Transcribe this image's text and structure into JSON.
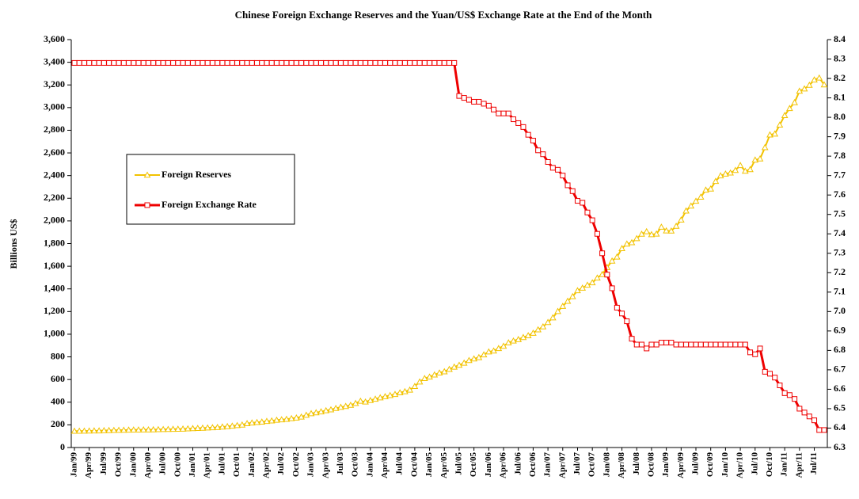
{
  "chart_data": {
    "type": "line",
    "title": "Chinese Foreign Exchange Reserves and the Yuan/US$ Exchange Rate at the End of the Month",
    "y_label": "Billions US$",
    "legend_position": "upper left",
    "categories": [
      "Jan/99",
      null,
      null,
      "Apr/99",
      null,
      null,
      "Jul/99",
      null,
      null,
      "Oct/99",
      null,
      null,
      "Jan/00",
      null,
      null,
      "Apr/00",
      null,
      null,
      "Jul/00",
      null,
      null,
      "Oct/00",
      null,
      null,
      "Jan/01",
      null,
      null,
      "Apr/01",
      null,
      null,
      "Jul/01",
      null,
      null,
      "Oct/01",
      null,
      null,
      "Jan/02",
      null,
      null,
      "Apr/02",
      null,
      null,
      "Jul/02",
      null,
      null,
      "Oct/02",
      null,
      null,
      "Jan/03",
      null,
      null,
      "Apr/03",
      null,
      null,
      "Jul/03",
      null,
      null,
      "Oct/03",
      null,
      null,
      "Jan/04",
      null,
      null,
      "Apr/04",
      null,
      null,
      "Jul/04",
      null,
      null,
      "Oct/04",
      null,
      null,
      "Jan/05",
      null,
      null,
      "Apr/05",
      null,
      null,
      "Jul/05",
      null,
      null,
      "Oct/05",
      null,
      null,
      "Jan/06",
      null,
      null,
      "Apr/06",
      null,
      null,
      "Jul/06",
      null,
      null,
      "Oct/06",
      null,
      null,
      "Jan/07",
      null,
      null,
      "Apr/07",
      null,
      null,
      "Jul/07",
      null,
      null,
      "Oct/07",
      null,
      null,
      "Jan/08",
      null,
      null,
      "Apr/08",
      null,
      null,
      "Jul/08",
      null,
      null,
      "Oct/08",
      null,
      null,
      "Jan/09",
      null,
      null,
      "Apr/09",
      null,
      null,
      "Jul/09",
      null,
      null,
      "Oct/09",
      null,
      null,
      "Jan/10",
      null,
      null,
      "Apr/10",
      null,
      null,
      "Jul/10",
      null,
      null,
      "Oct/10",
      null,
      null,
      "Jan/11",
      null,
      null,
      "Apr/11",
      null,
      null,
      "Jul/11",
      null,
      null
    ],
    "series": [
      {
        "name": "Foreign Reserves",
        "color": "#f2c200",
        "marker": "triangle",
        "values": [
          145,
          145,
          146,
          147,
          148,
          148,
          150,
          151,
          152,
          153,
          154,
          155,
          156,
          156,
          157,
          157,
          158,
          159,
          160,
          161,
          162,
          163,
          164,
          166,
          168,
          170,
          172,
          174,
          176,
          178,
          182,
          186,
          190,
          195,
          200,
          212,
          218,
          222,
          226,
          232,
          236,
          242,
          246,
          250,
          256,
          262,
          270,
          286,
          300,
          308,
          316,
          326,
          334,
          346,
          356,
          364,
          374,
          390,
          410,
          403,
          416,
          428,
          440,
          450,
          460,
          470,
          484,
          494,
          508,
          540,
          580,
          610,
          623,
          642,
          659,
          670,
          691,
          711,
          727,
          746,
          769,
          783,
          795,
          819,
          845,
          853,
          875,
          895,
          925,
          941,
          954,
          972,
          988,
          1010,
          1040,
          1066,
          1105,
          1146,
          1202,
          1247,
          1292,
          1333,
          1385,
          1408,
          1434,
          1455,
          1497,
          1528,
          1590,
          1647,
          1682,
          1757,
          1797,
          1809,
          1845,
          1884,
          1906,
          1880,
          1885,
          1946,
          1913,
          1912,
          1954,
          2009,
          2089,
          2132,
          2175,
          2211,
          2273,
          2283,
          2350,
          2399,
          2415,
          2424,
          2447,
          2490,
          2440,
          2454,
          2538,
          2548,
          2648,
          2760,
          2768,
          2847,
          2931,
          2993,
          3045,
          3146,
          3166,
          3198,
          3245,
          3262,
          3202
        ]
      },
      {
        "name": "Foreign Exchange Rate",
        "color": "#ee0000",
        "marker": "square",
        "axis": "y2",
        "values": [
          8.28,
          8.28,
          8.28,
          8.28,
          8.28,
          8.28,
          8.28,
          8.28,
          8.28,
          8.28,
          8.28,
          8.28,
          8.28,
          8.28,
          8.28,
          8.28,
          8.28,
          8.28,
          8.28,
          8.28,
          8.28,
          8.28,
          8.28,
          8.28,
          8.28,
          8.28,
          8.28,
          8.28,
          8.28,
          8.28,
          8.28,
          8.28,
          8.28,
          8.28,
          8.28,
          8.28,
          8.28,
          8.28,
          8.28,
          8.28,
          8.28,
          8.28,
          8.28,
          8.28,
          8.28,
          8.28,
          8.28,
          8.28,
          8.28,
          8.28,
          8.28,
          8.28,
          8.28,
          8.28,
          8.28,
          8.28,
          8.28,
          8.28,
          8.28,
          8.28,
          8.28,
          8.28,
          8.28,
          8.28,
          8.28,
          8.28,
          8.28,
          8.28,
          8.28,
          8.28,
          8.28,
          8.28,
          8.28,
          8.28,
          8.28,
          8.28,
          8.28,
          8.28,
          8.11,
          8.1,
          8.09,
          8.08,
          8.08,
          8.07,
          8.06,
          8.04,
          8.02,
          8.02,
          8.02,
          7.99,
          7.97,
          7.95,
          7.91,
          7.88,
          7.83,
          7.81,
          7.77,
          7.74,
          7.73,
          7.7,
          7.65,
          7.62,
          7.57,
          7.56,
          7.51,
          7.47,
          7.4,
          7.3,
          7.19,
          7.12,
          7.02,
          6.99,
          6.95,
          6.86,
          6.83,
          6.83,
          6.81,
          6.83,
          6.83,
          6.84,
          6.84,
          6.84,
          6.83,
          6.83,
          6.83,
          6.83,
          6.83,
          6.83,
          6.83,
          6.83,
          6.83,
          6.83,
          6.83,
          6.83,
          6.83,
          6.83,
          6.83,
          6.79,
          6.78,
          6.81,
          6.69,
          6.68,
          6.66,
          6.62,
          6.58,
          6.57,
          6.55,
          6.5,
          6.48,
          6.46,
          6.44,
          6.39,
          6.39
        ]
      }
    ],
    "ylim": [
      0,
      3600
    ],
    "yticks": [
      0,
      200,
      400,
      600,
      800,
      {
        "value": 1000,
        "label": "1,000"
      },
      {
        "value": 1200,
        "label": "1,200"
      },
      {
        "value": 1400,
        "label": "1,400"
      },
      {
        "value": 1600,
        "label": "1,600"
      },
      {
        "value": 1800,
        "label": "1,800"
      },
      {
        "value": 2000,
        "label": "2,000"
      },
      {
        "value": 2200,
        "label": "2,200"
      },
      {
        "value": 2400,
        "label": "2,400"
      },
      {
        "value": 2600,
        "label": "2,600"
      },
      {
        "value": 2800,
        "label": "2,800"
      },
      {
        "value": 3000,
        "label": "3,000"
      },
      {
        "value": 3200,
        "label": "3,200"
      },
      {
        "value": 3400,
        "label": "3,400"
      },
      {
        "value": 3600,
        "label": "3,600"
      }
    ],
    "y2lim": [
      6.3,
      8.4
    ],
    "y2ticks": [
      6.3,
      6.4,
      6.5,
      6.6,
      6.7,
      6.8,
      6.9,
      {
        "value": 7.0,
        "label": "7.0"
      },
      7.1,
      7.2,
      7.3,
      7.4,
      7.5,
      7.6,
      7.7,
      7.8,
      7.9,
      {
        "value": 8.0,
        "label": "8.0"
      },
      8.1,
      8.2,
      8.3,
      8.4
    ],
    "grid": false
  }
}
